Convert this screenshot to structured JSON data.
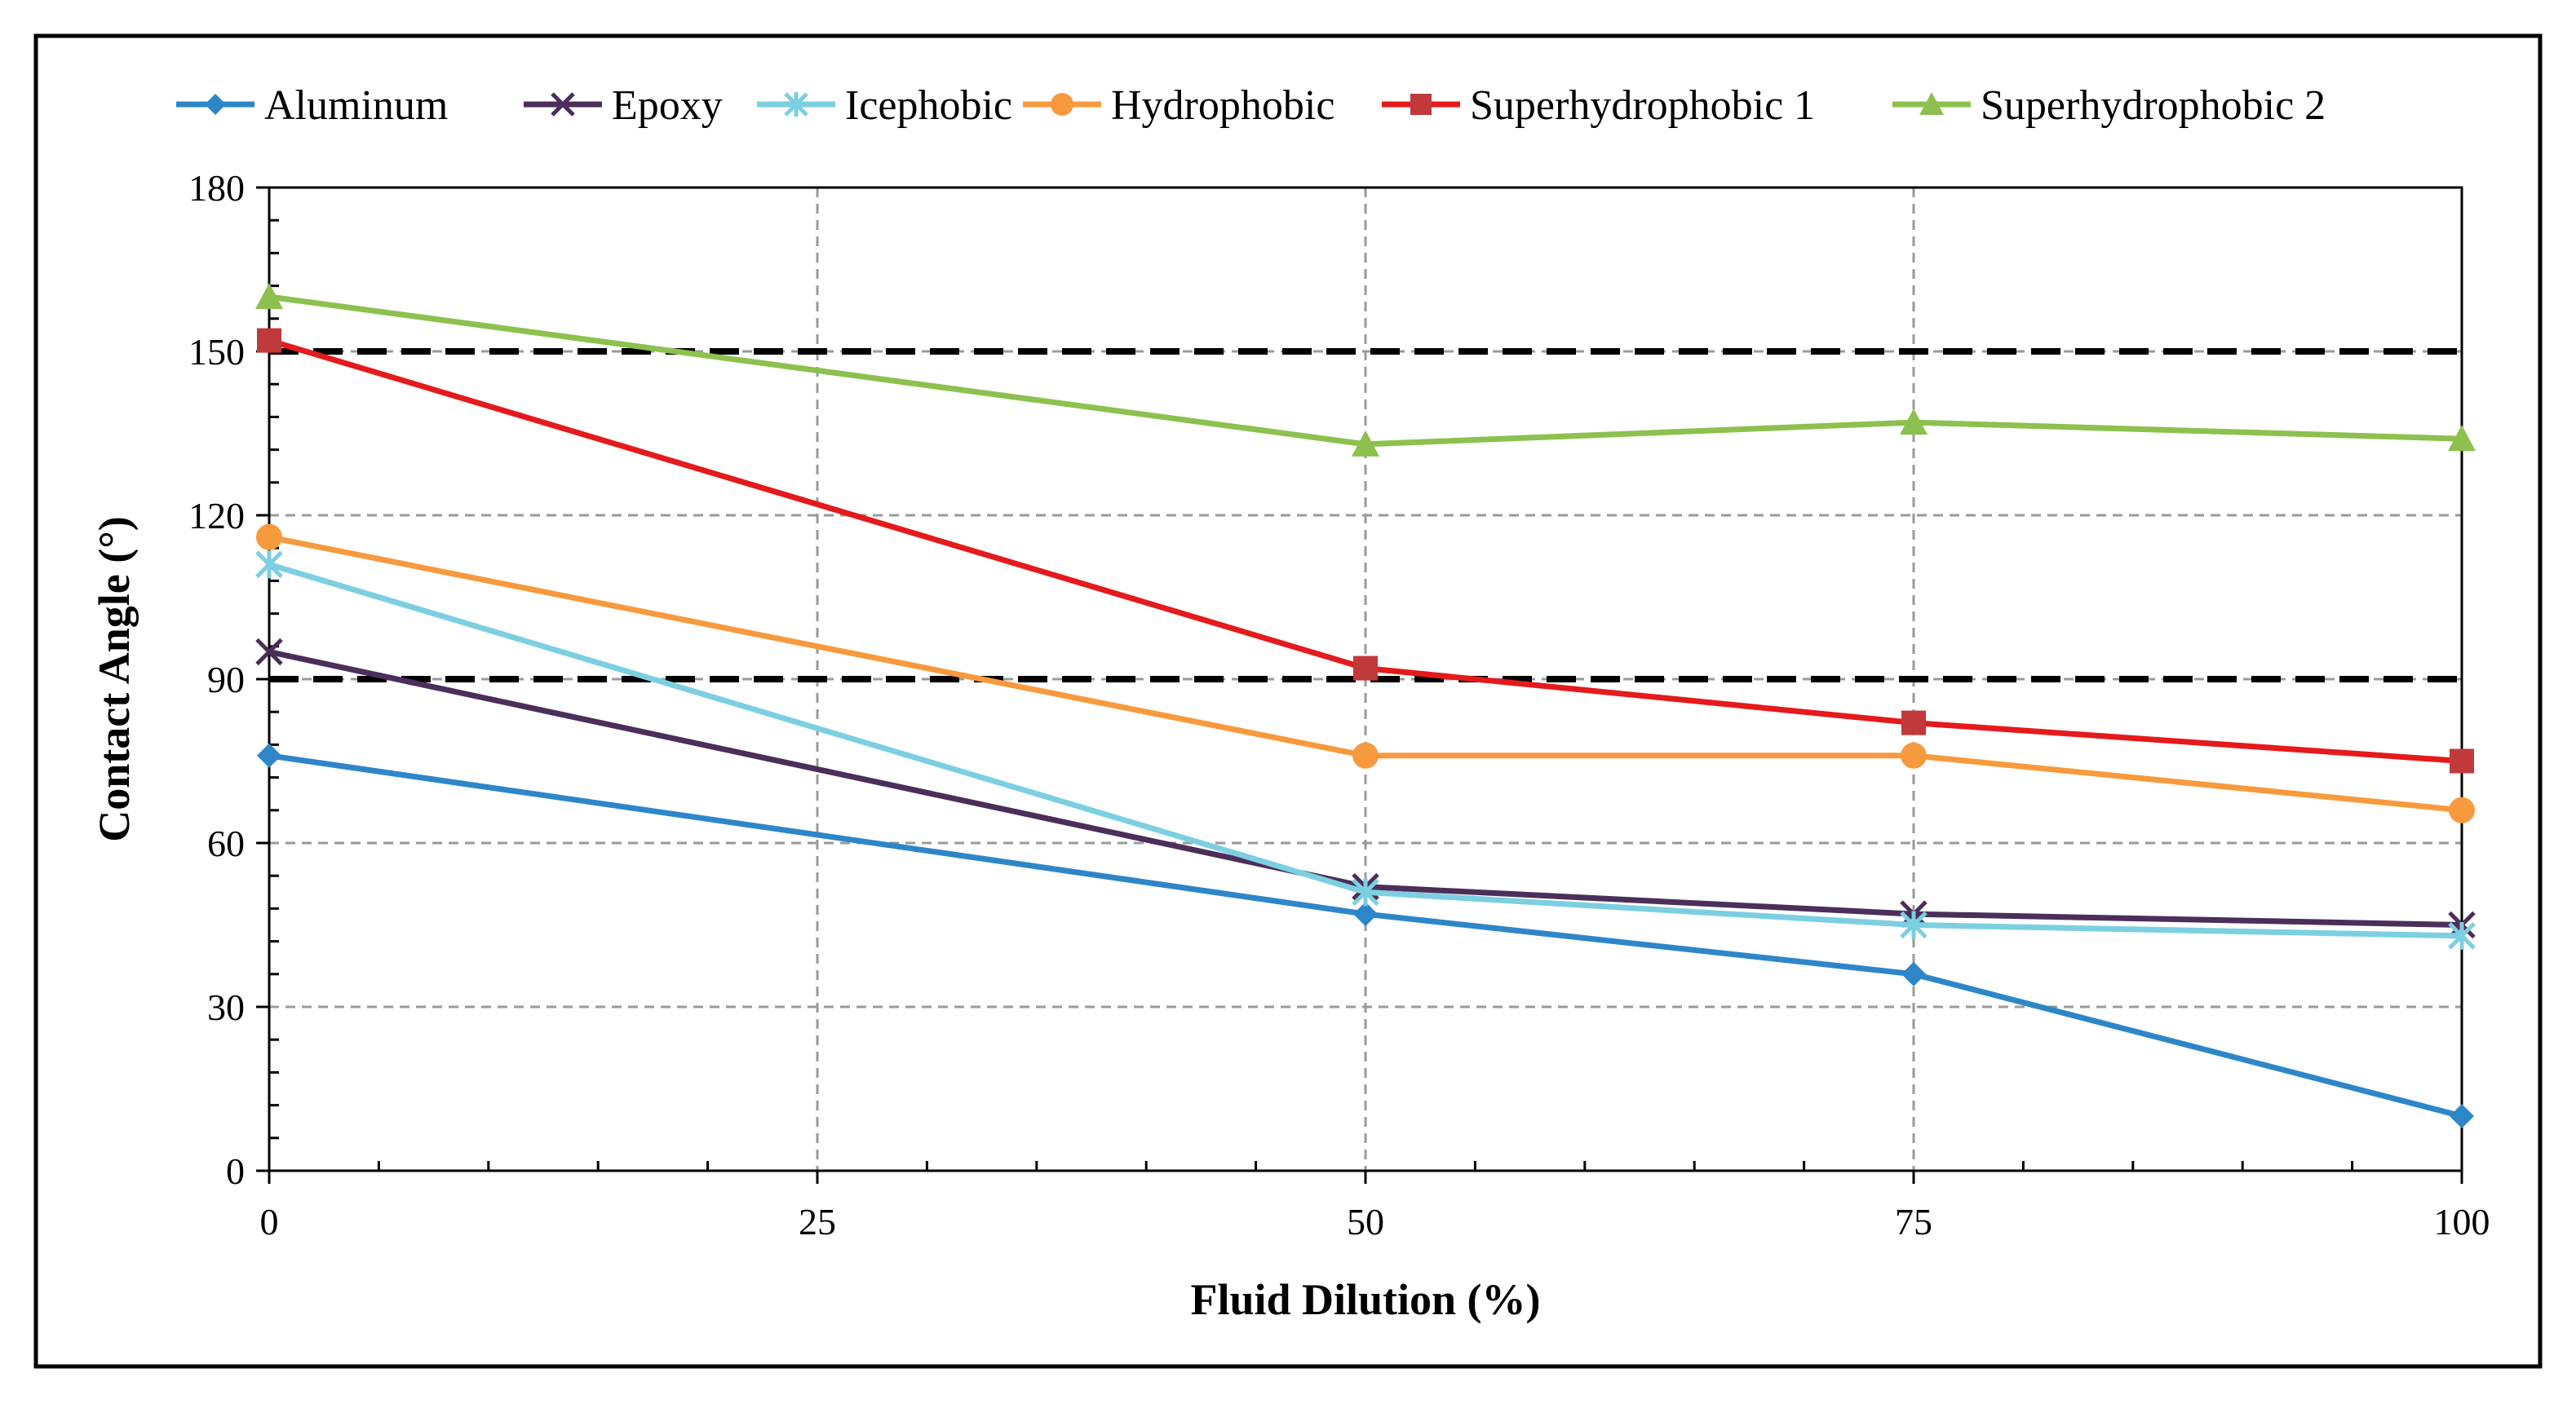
{
  "chart_data": {
    "type": "line",
    "title": "",
    "xlabel": "Fluid Dilution (%)",
    "ylabel": "Contact Angle (°)",
    "xlim": [
      0,
      100
    ],
    "ylim": [
      0,
      180
    ],
    "x_ticks": [
      0,
      25,
      50,
      75,
      100
    ],
    "x_tick_labels": [
      "0",
      "25",
      "50",
      "75",
      "100"
    ],
    "y_ticks": [
      0,
      30,
      60,
      90,
      120,
      150,
      180
    ],
    "y_tick_labels": [
      "0",
      "30",
      "60",
      "90",
      "120",
      "150",
      "180"
    ],
    "grid": true,
    "legend_position": "top",
    "reference_lines": [
      {
        "y": 150,
        "style": "dashed",
        "color": "#000000"
      },
      {
        "y": 90,
        "style": "dashed",
        "color": "#000000"
      }
    ],
    "series": [
      {
        "name": "Aluminum",
        "color": "#2E86C8",
        "marker": "diamond",
        "x": [
          0,
          50,
          75,
          100
        ],
        "values": [
          76,
          47,
          36,
          10
        ]
      },
      {
        "name": "Epoxy",
        "color": "#4B2E5A",
        "marker": "x",
        "x": [
          0,
          50,
          75,
          100
        ],
        "values": [
          95,
          52,
          47,
          45
        ]
      },
      {
        "name": "Icephobic",
        "color": "#7CCFE0",
        "marker": "asterisk",
        "x": [
          0,
          50,
          75,
          100
        ],
        "values": [
          111,
          51,
          45,
          43
        ]
      },
      {
        "name": "Hydrophobic",
        "color": "#F79A3E",
        "marker": "circle",
        "x": [
          0,
          50,
          75,
          100
        ],
        "values": [
          116,
          76,
          76,
          66
        ]
      },
      {
        "name": "Superhydrophobic 1",
        "color": "#E41A1C",
        "marker_color": "#C0393B",
        "marker": "square",
        "x": [
          0,
          50,
          75,
          100
        ],
        "values": [
          152,
          92,
          82,
          75
        ]
      },
      {
        "name": "Superhydrophobic 2",
        "color": "#8DC04E",
        "marker": "triangle",
        "x": [
          0,
          50,
          75,
          100
        ],
        "values": [
          160,
          133,
          137,
          134
        ]
      }
    ]
  }
}
